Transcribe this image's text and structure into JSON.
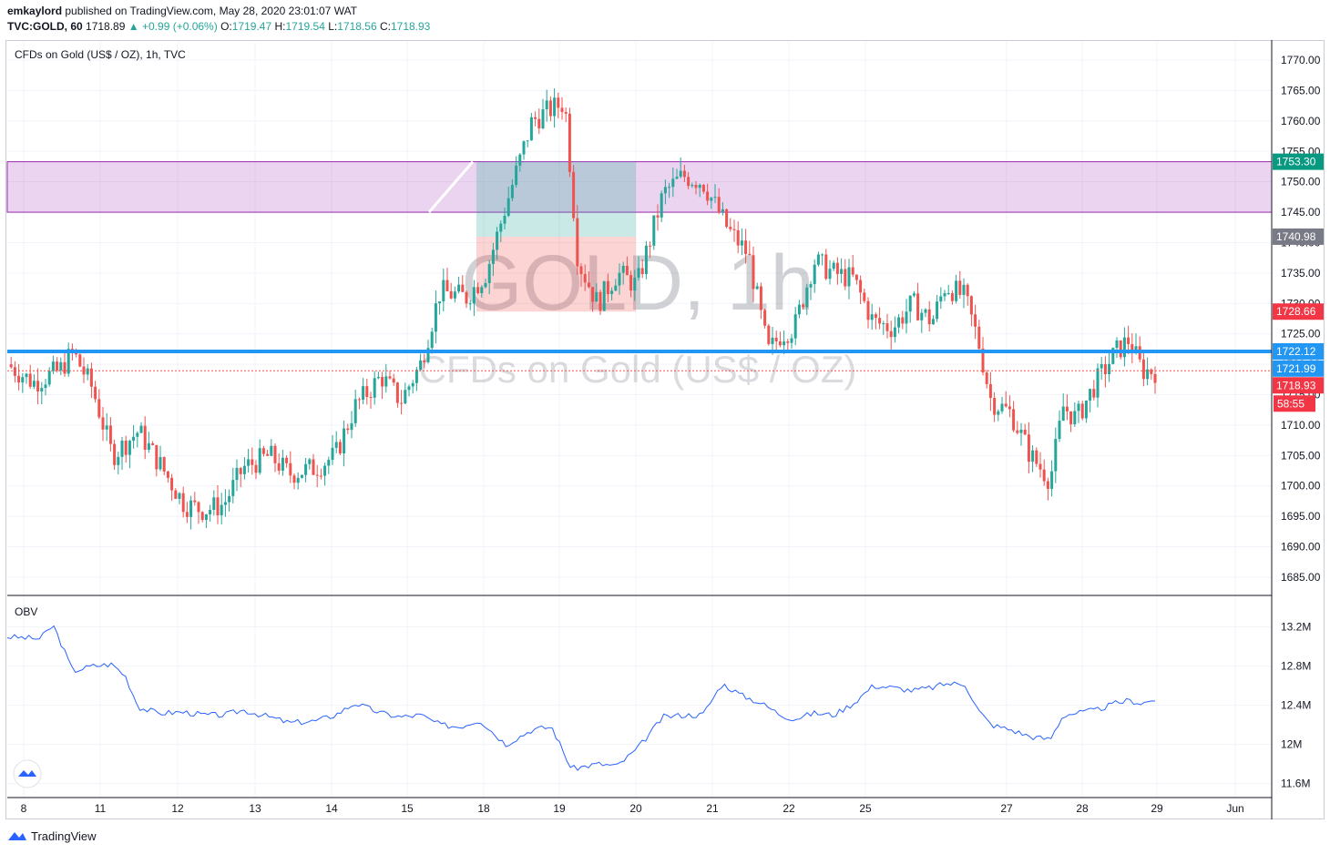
{
  "header": {
    "author": "emkaylord",
    "published_text": "published on TradingView.com, May 28, 2020 23:01:07 WAT",
    "symbol": "TVC:GOLD, 60",
    "last": "1718.89",
    "arrow": "▲",
    "change": "+0.99 (+0.06%)",
    "o_label": "O:",
    "o": "1719.47",
    "h_label": "H:",
    "h": "1719.54",
    "l_label": "L:",
    "l": "1718.56",
    "c_label": "C:",
    "c": "1718.93"
  },
  "chart_title": "CFDs on Gold (US$ / OZ), 1h, TVC",
  "watermark": {
    "big": "GOLD, 1h",
    "small": "CFDs on Gold (US$ / OZ)"
  },
  "indicator_label": "OBV",
  "footer": {
    "brand": "TradingView"
  },
  "colors": {
    "up": "#26a69a",
    "down": "#ef5350",
    "zone": "#9c27b0",
    "hline": "#2196f3",
    "obv": "#2962ff"
  },
  "chart_data": {
    "type": "candlestick",
    "price_axis": {
      "min": 1682,
      "max": 1773,
      "ticks": [
        1770,
        1765,
        1760,
        1755,
        1750,
        1745,
        1740,
        1735,
        1730,
        1725,
        1720,
        1715,
        1710,
        1705,
        1700,
        1695,
        1690,
        1685
      ]
    },
    "price_tick_labels": [
      "1770.00",
      "1765.00",
      "1760.00",
      "1755.00",
      "1750.00",
      "1745.00",
      "1740.00",
      "1735.00",
      "1730.00",
      "1725.00",
      "1720.00",
      "1715.00",
      "1710.00",
      "1705.00",
      "1700.00",
      "1695.00",
      "1690.00",
      "1685.00"
    ],
    "x_tick_labels": [
      "8",
      "11",
      "12",
      "13",
      "14",
      "15",
      "18",
      "19",
      "20",
      "21",
      "22",
      "25",
      "27",
      "28",
      "29",
      "Jun"
    ],
    "price_path": [
      [
        0,
        1720
      ],
      [
        0.4,
        1717
      ],
      [
        0.8,
        1719
      ],
      [
        1,
        1722
      ],
      [
        1.3,
        1716
      ],
      [
        1.6,
        1705
      ],
      [
        2,
        1709
      ],
      [
        2.3,
        1704
      ],
      [
        2.7,
        1697
      ],
      [
        3,
        1696
      ],
      [
        3.3,
        1697
      ],
      [
        3.6,
        1703
      ],
      [
        4,
        1705
      ],
      [
        4.3,
        1702
      ],
      [
        4.7,
        1703
      ],
      [
        5,
        1705
      ],
      [
        5.3,
        1713
      ],
      [
        5.7,
        1718
      ],
      [
        6,
        1714
      ],
      [
        6.3,
        1720
      ],
      [
        6.6,
        1732
      ],
      [
        7,
        1731
      ],
      [
        7.3,
        1735
      ],
      [
        7.6,
        1746
      ],
      [
        8,
        1760
      ],
      [
        8.3,
        1762
      ],
      [
        8.5,
        1763
      ],
      [
        8.7,
        1737
      ],
      [
        9,
        1730
      ],
      [
        9.3,
        1735
      ],
      [
        9.6,
        1733
      ],
      [
        10,
        1748
      ],
      [
        10.3,
        1751
      ],
      [
        10.6,
        1750
      ],
      [
        10.8,
        1746
      ],
      [
        11,
        1742
      ],
      [
        11.3,
        1738
      ],
      [
        11.6,
        1722
      ],
      [
        11.8,
        1725
      ],
      [
        12,
        1726
      ],
      [
        12.3,
        1737
      ],
      [
        12.6,
        1735
      ],
      [
        12.9,
        1734
      ],
      [
        13.2,
        1727
      ],
      [
        13.5,
        1726
      ],
      [
        13.8,
        1730
      ],
      [
        14.1,
        1727
      ],
      [
        14.3,
        1733
      ],
      [
        14.6,
        1731
      ],
      [
        14.8,
        1724
      ],
      [
        15,
        1714
      ],
      [
        15.3,
        1712
      ],
      [
        15.6,
        1705
      ],
      [
        15.9,
        1701
      ],
      [
        16.1,
        1713
      ],
      [
        16.3,
        1711
      ],
      [
        16.6,
        1717
      ],
      [
        16.9,
        1722
      ],
      [
        17.1,
        1724
      ],
      [
        17.3,
        1719
      ],
      [
        17.5,
        1718.9
      ]
    ],
    "current_price": 1718.93,
    "countdown": "58:55",
    "series": [
      {
        "name": "OBV",
        "axis": {
          "min": 11.55,
          "max": 13.42,
          "ticks": [
            13.2,
            12.8,
            12.4,
            12.0,
            11.6
          ]
        },
        "tick_labels": [
          "13.2M",
          "12.8M",
          "12.4M",
          "12M",
          "11.6M"
        ],
        "points": [
          [
            0,
            13.1
          ],
          [
            0.5,
            13.08
          ],
          [
            0.7,
            13.22
          ],
          [
            1,
            12.75
          ],
          [
            1.3,
            12.8
          ],
          [
            1.6,
            12.82
          ],
          [
            1.8,
            12.7
          ],
          [
            2,
            12.38
          ],
          [
            2.3,
            12.32
          ],
          [
            2.7,
            12.33
          ],
          [
            3,
            12.3
          ],
          [
            3.3,
            12.3
          ],
          [
            3.6,
            12.35
          ],
          [
            4,
            12.28
          ],
          [
            4.3,
            12.22
          ],
          [
            4.7,
            12.24
          ],
          [
            5,
            12.3
          ],
          [
            5.3,
            12.42
          ],
          [
            5.7,
            12.32
          ],
          [
            6,
            12.28
          ],
          [
            6.3,
            12.3
          ],
          [
            6.6,
            12.2
          ],
          [
            6.9,
            12.18
          ],
          [
            7.2,
            12.25
          ],
          [
            7.6,
            12.0
          ],
          [
            8,
            12.15
          ],
          [
            8.3,
            12.18
          ],
          [
            8.6,
            11.75
          ],
          [
            9,
            11.8
          ],
          [
            9.3,
            11.78
          ],
          [
            9.6,
            11.95
          ],
          [
            10,
            12.28
          ],
          [
            10.3,
            12.3
          ],
          [
            10.6,
            12.3
          ],
          [
            10.9,
            12.62
          ],
          [
            11.2,
            12.5
          ],
          [
            11.5,
            12.42
          ],
          [
            11.8,
            12.3
          ],
          [
            12,
            12.26
          ],
          [
            12.3,
            12.32
          ],
          [
            12.6,
            12.3
          ],
          [
            12.9,
            12.42
          ],
          [
            13.2,
            12.6
          ],
          [
            13.5,
            12.58
          ],
          [
            13.8,
            12.55
          ],
          [
            14.1,
            12.58
          ],
          [
            14.3,
            12.62
          ],
          [
            14.6,
            12.62
          ],
          [
            14.8,
            12.35
          ],
          [
            15,
            12.2
          ],
          [
            15.3,
            12.15
          ],
          [
            15.6,
            12.08
          ],
          [
            15.9,
            12.05
          ],
          [
            16.1,
            12.3
          ],
          [
            16.3,
            12.32
          ],
          [
            16.6,
            12.35
          ],
          [
            16.9,
            12.42
          ],
          [
            17.1,
            12.45
          ],
          [
            17.3,
            12.42
          ],
          [
            17.5,
            12.46
          ]
        ]
      }
    ],
    "horizontal_lines": [
      {
        "price": 1722.12,
        "label": "1722.12"
      },
      {
        "price": 1721.99,
        "label": "1721.99"
      }
    ],
    "zones": [
      {
        "from": 1745,
        "to": 1753.3
      }
    ],
    "position_tool": {
      "entry": 1740.98,
      "stop": 1753.3,
      "target": 1728.66
    },
    "price_tags": [
      "1753.30",
      "1740.98",
      "1728.66",
      "1722.12",
      "1721.99",
      "1718.93",
      "58:55"
    ]
  }
}
